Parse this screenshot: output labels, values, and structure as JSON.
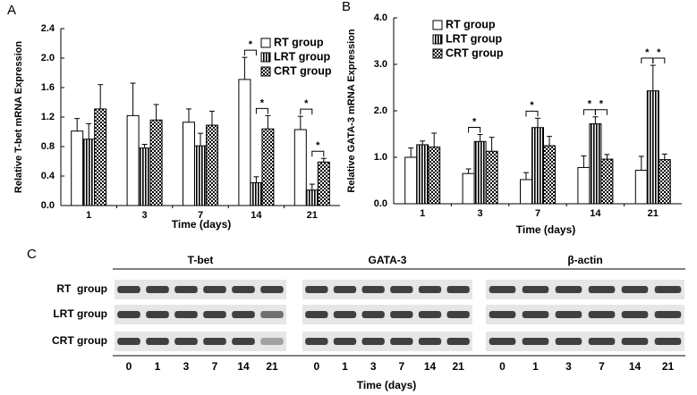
{
  "chart_data": [
    {
      "type": "bar",
      "label": "A",
      "ylabel": "Relative T-bet mRNA Expression",
      "xlabel": "Time (days)",
      "categories": [
        "1",
        "3",
        "7",
        "14",
        "21"
      ],
      "ylim": [
        0,
        2.4
      ],
      "yticks": [
        {
          "value": 0,
          "label": "0.0"
        },
        0.4,
        0.8,
        1.2,
        1.6,
        {
          "value": 2,
          "label": "2.0"
        },
        2.4
      ],
      "series": [
        {
          "name": "RT group",
          "color": "#ffffff",
          "pattern": "solid",
          "values": [
            1.01,
            1.22,
            1.13,
            1.71,
            1.03
          ],
          "errors": [
            0.17,
            0.44,
            0.18,
            0.3,
            0.18
          ]
        },
        {
          "name": "LRT group",
          "color": "#000000",
          "pattern": "vertical-stripes",
          "values": [
            0.9,
            0.78,
            0.81,
            0.31,
            0.21
          ],
          "errors": [
            0.21,
            0.05,
            0.17,
            0.08,
            0.08
          ]
        },
        {
          "name": "CRT group",
          "color": "#000000",
          "pattern": "checker",
          "values": [
            1.31,
            1.16,
            1.09,
            1.04,
            0.59
          ],
          "errors": [
            0.33,
            0.21,
            0.19,
            0.18,
            0.05
          ]
        }
      ],
      "annotations": [
        {
          "label": "*",
          "category": "14",
          "between": [
            "RT group",
            "LRT group"
          ]
        },
        {
          "label": "*",
          "category": "14",
          "between": [
            "LRT group",
            "CRT group"
          ]
        },
        {
          "label": "*",
          "category": "21",
          "between": [
            "RT group",
            "LRT group"
          ]
        },
        {
          "label": "*",
          "category": "21",
          "between": [
            "LRT group",
            "CRT group"
          ]
        }
      ]
    },
    {
      "type": "bar",
      "label": "B",
      "ylabel": "Relative GATA-3 mRNA Expression",
      "xlabel": "Time (days)",
      "categories": [
        "1",
        "3",
        "7",
        "14",
        "21"
      ],
      "ylim": [
        0,
        4
      ],
      "yticks": [
        {
          "value": 0,
          "label": "0.0"
        },
        {
          "value": 1,
          "label": "1.0"
        },
        {
          "value": 2,
          "label": "2.0"
        },
        {
          "value": 3,
          "label": "3.0"
        },
        {
          "value": 4,
          "label": "4.0"
        }
      ],
      "series": [
        {
          "name": "RT group",
          "color": "#ffffff",
          "pattern": "solid",
          "values": [
            1.0,
            0.65,
            0.52,
            0.78,
            0.72
          ],
          "errors": [
            0.2,
            0.1,
            0.15,
            0.25,
            0.3
          ]
        },
        {
          "name": "LRT group",
          "color": "#000000",
          "pattern": "vertical-stripes",
          "values": [
            1.27,
            1.34,
            1.64,
            1.72,
            2.43
          ],
          "errors": [
            0.08,
            0.15,
            0.2,
            0.15,
            0.55
          ]
        },
        {
          "name": "CRT group",
          "color": "#000000",
          "pattern": "checker",
          "values": [
            1.22,
            1.13,
            1.25,
            0.96,
            0.95
          ],
          "errors": [
            0.3,
            0.3,
            0.2,
            0.1,
            0.12
          ]
        }
      ],
      "annotations": [
        {
          "label": "*",
          "category": "3",
          "between": [
            "RT group",
            "LRT group"
          ]
        },
        {
          "label": "*",
          "category": "7",
          "between": [
            "RT group",
            "LRT group"
          ]
        },
        {
          "label": "*",
          "category": "14",
          "between": [
            "RT group",
            "LRT group"
          ]
        },
        {
          "label": "*",
          "category": "14",
          "between": [
            "LRT group",
            "CRT group"
          ]
        },
        {
          "label": "*",
          "category": "21",
          "between": [
            "RT group",
            "LRT group"
          ]
        },
        {
          "label": "*",
          "category": "21",
          "between": [
            "LRT group",
            "CRT group"
          ]
        }
      ]
    }
  ],
  "blot": {
    "label": "C",
    "xlabel": "Time (days)",
    "rows": [
      "RT  group",
      "LRT group",
      "CRT group"
    ],
    "panels": [
      {
        "title": "T-bet",
        "lanes": [
          "0",
          "1",
          "3",
          "7",
          "14",
          "21"
        ]
      },
      {
        "title": "GATA-3",
        "lanes": [
          "0",
          "1",
          "3",
          "7",
          "14",
          "21"
        ]
      },
      {
        "title": "β-actin",
        "lanes": [
          "0",
          "1",
          "3",
          "7",
          "14",
          "21"
        ]
      }
    ]
  }
}
